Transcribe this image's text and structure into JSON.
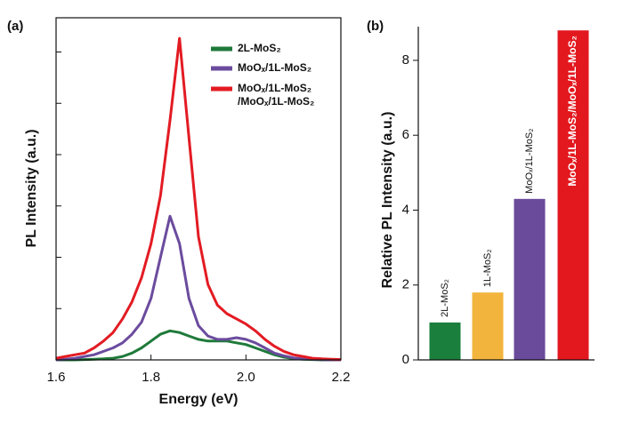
{
  "chart_data": [
    {
      "type": "line",
      "panel": "(a)",
      "xlabel": "Energy (eV)",
      "ylabel": "PL Intensity (a.u.)",
      "xlim": [
        1.6,
        2.2
      ],
      "xticks": [
        1.6,
        1.8,
        {
          "value": 2,
          "label": "2.0"
        },
        2.2
      ],
      "ylim": [
        0,
        10
      ],
      "yticks": [
        1.5,
        3,
        4.5,
        6,
        7.5,
        9
      ],
      "x": [
        1.6,
        1.62,
        1.64,
        1.66,
        1.68,
        1.7,
        1.72,
        1.74,
        1.76,
        1.78,
        1.8,
        1.82,
        1.84,
        1.86,
        1.88,
        1.9,
        1.92,
        1.94,
        1.96,
        1.98,
        2.0,
        2.02,
        2.04,
        2.06,
        2.08,
        2.1,
        2.12,
        2.14,
        2.16,
        2.18,
        2.2
      ],
      "series": [
        {
          "name": "2L-MoS₂",
          "color": "#1f7a3a",
          "values": [
            0,
            0,
            0,
            0.01,
            0.02,
            0.03,
            0.05,
            0.1,
            0.2,
            0.35,
            0.55,
            0.75,
            0.85,
            0.8,
            0.7,
            0.6,
            0.55,
            0.55,
            0.55,
            0.5,
            0.45,
            0.35,
            0.25,
            0.15,
            0.08,
            0.04,
            0.02,
            0.01,
            0,
            0,
            0
          ]
        },
        {
          "name": "MoOₓ/1L-MoS₂",
          "color": "#6b4b9e",
          "values": [
            0,
            0.02,
            0.05,
            0.1,
            0.15,
            0.25,
            0.35,
            0.5,
            0.75,
            1.1,
            1.8,
            3.0,
            4.2,
            3.4,
            1.8,
            1.0,
            0.7,
            0.6,
            0.6,
            0.65,
            0.6,
            0.5,
            0.35,
            0.2,
            0.12,
            0.06,
            0.03,
            0.02,
            0.01,
            0,
            0
          ]
        },
        {
          "name": "MoOₓ/1L-MoS₂ /MoOₓ/1L-MoS₂",
          "color": "#e31b23",
          "values": [
            0.05,
            0.1,
            0.15,
            0.2,
            0.35,
            0.55,
            0.8,
            1.2,
            1.7,
            2.4,
            3.4,
            4.8,
            7.0,
            9.4,
            6.5,
            3.6,
            2.2,
            1.6,
            1.35,
            1.2,
            1.05,
            0.85,
            0.6,
            0.4,
            0.25,
            0.15,
            0.1,
            0.05,
            0.03,
            0.02,
            0.01
          ]
        }
      ]
    },
    {
      "type": "bar",
      "panel": "(b)",
      "ylabel": "Relative PL Intensity (a.u.)",
      "ylim": [
        0,
        8.9
      ],
      "yticks": [
        0,
        2,
        4,
        6,
        8
      ],
      "categories": [
        "2L-MoS₂",
        "1L-MoS₂",
        "MoOₓ/1L-MoS₂",
        "MoOₓ/1L-MoS₂/MoOₓ/1L-MoS₂"
      ],
      "values": [
        1.0,
        1.8,
        4.3,
        8.8
      ],
      "colors": [
        "#1a7f3c",
        "#f2b43c",
        "#6a4a9a",
        "#e3171e"
      ]
    }
  ]
}
